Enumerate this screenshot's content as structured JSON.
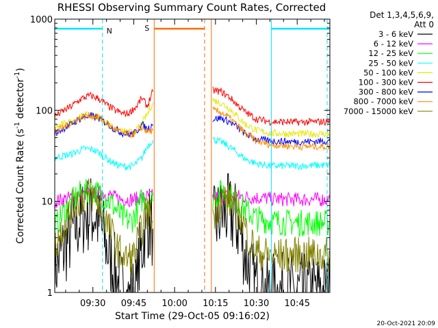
{
  "chart_data": {
    "type": "line",
    "title": "RHESSI Observing Summary Count Rates, Corrected",
    "xlabel": "Start Time (29-Oct-05 09:16:02)",
    "ylabel_prefix": "Corrected Count Rate (s",
    "ylabel_mid": " detector",
    "ylabel_sup": "-1",
    "ylabel_suffix": ")",
    "yscale": "log",
    "ylim": [
      1,
      1000
    ],
    "xlim_minutes": [
      556,
      657
    ],
    "x_ticks": [
      {
        "label": "09:30",
        "m": 570
      },
      {
        "label": "09:45",
        "m": 585
      },
      {
        "label": "10:00",
        "m": 600
      },
      {
        "label": "10:15",
        "m": 615
      },
      {
        "label": "10:30",
        "m": 630
      },
      {
        "label": "10:45",
        "m": 645
      }
    ],
    "y_ticks": [
      {
        "label": "1000",
        "v": 1000
      },
      {
        "label": "100",
        "v": 100
      },
      {
        "label": "10",
        "v": 10
      },
      {
        "label": "1",
        "v": 1
      }
    ],
    "legend_header": [
      "Det 1,3,4,5,6,9,",
      "Att 0"
    ],
    "legend_position": "right",
    "series": [
      {
        "name": "3 - 6 keV",
        "color": "#000000",
        "noise": 0.45,
        "segs": [
          [
            [
              556,
              1.8
            ],
            [
              560,
              3.2
            ],
            [
              564,
              5.5
            ],
            [
              567,
              7.0
            ],
            [
              569,
              7.5
            ],
            [
              571,
              7.0
            ],
            [
              573,
              5.0
            ],
            [
              575,
              3.2
            ],
            [
              577,
              2.0
            ],
            [
              579,
              1.3
            ],
            [
              581,
              1.0
            ],
            [
              583,
              0.8
            ],
            [
              586,
              1.0
            ],
            [
              588,
              3.0
            ],
            [
              590,
              6.5
            ],
            [
              591,
              5.5
            ],
            [
              592,
              5.0
            ]
          ],
          [
            [
              614,
              5.0
            ],
            [
              616,
              6.5
            ],
            [
              619,
              7.5
            ],
            [
              622,
              6.5
            ],
            [
              624,
              4.5
            ],
            [
              626,
              2.5
            ],
            [
              628,
              1.5
            ],
            [
              631,
              1.0
            ],
            [
              657,
              1.0
            ]
          ]
        ]
      },
      {
        "name": "6 - 12 keV",
        "color": "#ff00ff",
        "noise": 0.08,
        "segs": [
          [
            [
              556,
              10.0
            ],
            [
              565,
              11.5
            ],
            [
              570,
              12.5
            ],
            [
              575,
              12.0
            ],
            [
              580,
              10.5
            ],
            [
              585,
              10.5
            ],
            [
              588,
              11.0
            ],
            [
              592,
              11.5
            ]
          ],
          [
            [
              614,
              11.0
            ],
            [
              620,
              11.5
            ],
            [
              630,
              11.0
            ],
            [
              640,
              10.5
            ],
            [
              657,
              10.5
            ]
          ]
        ]
      },
      {
        "name": "12 - 25 keV",
        "color": "#00ff00",
        "noise": 0.15,
        "segs": [
          [
            [
              556,
              5.0
            ],
            [
              560,
              8.0
            ],
            [
              565,
              12.0
            ],
            [
              570,
              13.0
            ],
            [
              575,
              11.0
            ],
            [
              578,
              8.5
            ],
            [
              581,
              6.5
            ],
            [
              584,
              6.0
            ],
            [
              586,
              7.5
            ],
            [
              588,
              10.5
            ],
            [
              590,
              11.0
            ],
            [
              592,
              10.0
            ]
          ],
          [
            [
              614,
              11.0
            ],
            [
              618,
              13.0
            ],
            [
              622,
              10.5
            ],
            [
              626,
              8.0
            ],
            [
              630,
              6.5
            ],
            [
              636,
              6.0
            ],
            [
              645,
              5.8
            ],
            [
              657,
              5.8
            ]
          ]
        ]
      },
      {
        "name": "25 - 50 keV",
        "color": "#00ffff",
        "noise": 0.04,
        "segs": [
          [
            [
              556,
              30.0
            ],
            [
              562,
              33.0
            ],
            [
              565,
              36.0
            ],
            [
              567,
              38.0
            ],
            [
              570,
              37.0
            ],
            [
              573,
              33.0
            ],
            [
              576,
              28.0
            ],
            [
              579,
              25.0
            ],
            [
              582,
              24.0
            ],
            [
              585,
              24.5
            ],
            [
              588,
              30.0
            ],
            [
              590,
              40.0
            ],
            [
              592,
              47.0
            ]
          ],
          [
            [
              614,
              48.0
            ],
            [
              617,
              45.0
            ],
            [
              620,
              40.0
            ],
            [
              623,
              34.0
            ],
            [
              626,
              29.0
            ],
            [
              630,
              26.0
            ],
            [
              635,
              24.5
            ],
            [
              645,
              24.5
            ],
            [
              657,
              25.0
            ]
          ]
        ]
      },
      {
        "name": "50 - 100 keV",
        "color": "#e6e600",
        "noise": 0.04,
        "segs": [
          [
            [
              556,
              65.0
            ],
            [
              562,
              75.0
            ],
            [
              566,
              85.0
            ],
            [
              569,
              90.0
            ],
            [
              572,
              85.0
            ],
            [
              575,
              73.0
            ],
            [
              578,
              63.0
            ],
            [
              581,
              58.0
            ],
            [
              584,
              57.0
            ],
            [
              586,
              60.0
            ],
            [
              588,
              72.0
            ],
            [
              590,
              90.0
            ],
            [
              592,
              120.0
            ]
          ],
          [
            [
              614,
              130.0
            ],
            [
              617,
              120.0
            ],
            [
              620,
              105.0
            ],
            [
              623,
              85.0
            ],
            [
              626,
              70.0
            ],
            [
              630,
              60.0
            ],
            [
              635,
              56.0
            ],
            [
              645,
              55.0
            ],
            [
              657,
              55.0
            ]
          ]
        ]
      },
      {
        "name": "100 - 300 keV",
        "color": "#ff0000",
        "noise": 0.04,
        "segs": [
          [
            [
              556,
              85.0
            ],
            [
              562,
              110.0
            ],
            [
              566,
              135.0
            ],
            [
              569,
              145.0
            ],
            [
              572,
              135.0
            ],
            [
              575,
              115.0
            ],
            [
              578,
              100.0
            ],
            [
              581,
              92.0
            ],
            [
              583,
              92.0
            ],
            [
              586,
              110.0
            ],
            [
              588,
              135.0
            ],
            [
              590,
              110.0
            ],
            [
              592,
              160.0
            ]
          ],
          [
            [
              614,
              165.0
            ],
            [
              617,
              160.0
            ],
            [
              620,
              140.0
            ],
            [
              623,
              115.0
            ],
            [
              626,
              95.0
            ],
            [
              630,
              80.0
            ],
            [
              635,
              75.0
            ],
            [
              645,
              74.0
            ],
            [
              657,
              75.0
            ]
          ]
        ]
      },
      {
        "name": "300 - 800 keV",
        "color": "#0000ff",
        "noise": 0.04,
        "segs": [
          [
            [
              556,
              55.0
            ],
            [
              562,
              70.0
            ],
            [
              566,
              83.0
            ],
            [
              569,
              87.0
            ],
            [
              572,
              82.0
            ],
            [
              575,
              72.0
            ],
            [
              578,
              62.0
            ],
            [
              581,
              56.0
            ],
            [
              584,
              54.0
            ],
            [
              586,
              58.0
            ],
            [
              588,
              70.0
            ],
            [
              590,
              62.0
            ],
            [
              592,
              70.0
            ]
          ],
          [
            [
              614,
              80.0
            ],
            [
              617,
              82.0
            ],
            [
              620,
              75.0
            ],
            [
              623,
              65.0
            ],
            [
              626,
              55.0
            ],
            [
              630,
              48.0
            ],
            [
              635,
              46.0
            ],
            [
              645,
              45.0
            ],
            [
              657,
              46.0
            ]
          ]
        ]
      },
      {
        "name": "800 - 7000 keV",
        "color": "#ff8c00",
        "noise": 0.04,
        "segs": [
          [
            [
              556,
              57.0
            ],
            [
              562,
              72.0
            ],
            [
              566,
              85.0
            ],
            [
              569,
              88.0
            ],
            [
              572,
              83.0
            ],
            [
              575,
              73.0
            ],
            [
              578,
              62.0
            ],
            [
              581,
              56.0
            ],
            [
              584,
              54.0
            ],
            [
              586,
              56.0
            ],
            [
              588,
              65.0
            ],
            [
              590,
              58.0
            ],
            [
              592,
              60.0
            ]
          ],
          [
            [
              614,
              100.0
            ],
            [
              617,
              95.0
            ],
            [
              620,
              83.0
            ],
            [
              623,
              68.0
            ],
            [
              626,
              55.0
            ],
            [
              630,
              46.0
            ],
            [
              635,
              42.0
            ],
            [
              645,
              40.0
            ],
            [
              657,
              40.0
            ]
          ]
        ]
      },
      {
        "name": "7000 - 15000 keV",
        "color": "#808000",
        "noise": 0.2,
        "segs": [
          [
            [
              556,
              3.0
            ],
            [
              560,
              6.0
            ],
            [
              564,
              10.0
            ],
            [
              568,
              12.0
            ],
            [
              570,
              11.5
            ],
            [
              573,
              8.5
            ],
            [
              576,
              5.0
            ],
            [
              579,
              3.0
            ],
            [
              582,
              2.3
            ],
            [
              585,
              2.5
            ],
            [
              588,
              5.0
            ],
            [
              590,
              8.0
            ],
            [
              592,
              6.0
            ]
          ],
          [
            [
              614,
              7.0
            ],
            [
              618,
              11.0
            ],
            [
              621,
              10.0
            ],
            [
              624,
              7.0
            ],
            [
              627,
              4.0
            ],
            [
              630,
              2.8
            ],
            [
              636,
              2.5
            ],
            [
              645,
              2.6
            ],
            [
              657,
              2.6
            ]
          ]
        ]
      }
    ],
    "annotations": {
      "night": {
        "label": "N",
        "color": "#00e5ff",
        "bars": [
          [
            556,
            573.5
          ],
          [
            635.5,
            657
          ]
        ],
        "dashed": [
          573.5,
          656
        ],
        "solid": [
          556,
          635.5
        ]
      },
      "saa": {
        "label": "S",
        "color": "#ff6a00",
        "bars": [
          [
            592.5,
            611
          ]
        ],
        "solid": [
          592.5,
          613.5
        ],
        "dashed": [
          611
        ]
      }
    },
    "footer_date": "20-Oct-2021 20:09"
  }
}
